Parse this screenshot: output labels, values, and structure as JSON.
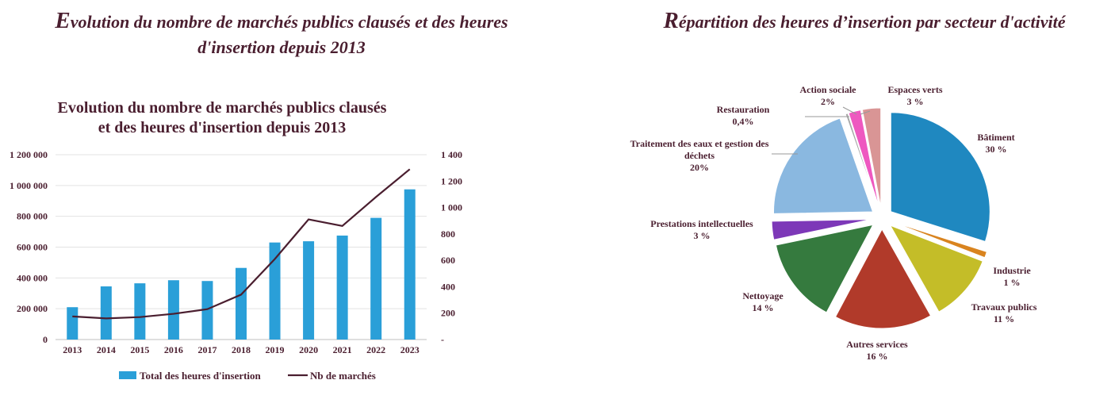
{
  "left_panel": {
    "title_first_letter": "E",
    "title_rest_line1": "volution du nombre de marchés publics clausés et des heures",
    "title_line2": "d'insertion depuis 2013"
  },
  "right_panel": {
    "title_first_letter": "R",
    "title_rest": "épartition des heures d’insertion par secteur d'activité"
  },
  "chart_data": [
    {
      "type": "bar",
      "title_lines": [
        "Evolution du nombre de marchés publics clausés",
        "et des heures d'insertion depuis 2013"
      ],
      "categories": [
        "2013",
        "2014",
        "2015",
        "2016",
        "2017",
        "2018",
        "2019",
        "2020",
        "2021",
        "2022",
        "2023"
      ],
      "series": [
        {
          "name": "Total des heures d'insertion",
          "type": "bar",
          "axis": "left",
          "color": "#2a9fd8",
          "values": [
            210000,
            345000,
            365000,
            385000,
            380000,
            465000,
            630000,
            638000,
            675000,
            790000,
            975000
          ]
        },
        {
          "name": "Nb de marchés",
          "type": "line",
          "axis": "right",
          "color": "#4a1e2f",
          "values": [
            175,
            160,
            170,
            195,
            230,
            340,
            610,
            910,
            860,
            1080,
            1290
          ]
        }
      ],
      "y_left": {
        "ylim": [
          0,
          1200000
        ],
        "ticks": [
          0,
          200000,
          400000,
          600000,
          800000,
          1000000,
          1200000
        ],
        "tick_labels": [
          "0",
          "200 000",
          "400 000",
          "600 000",
          "800 000",
          "1 000 000",
          "1 200 000"
        ]
      },
      "y_right": {
        "ylim": [
          0,
          1400
        ],
        "ticks": [
          0,
          200,
          400,
          600,
          800,
          1000,
          1200,
          1400
        ],
        "tick_labels": [
          "-",
          "200",
          "400",
          "600",
          "800",
          "1 000",
          "1 200",
          "1 400"
        ]
      },
      "grid": true,
      "legend_position": "bottom"
    },
    {
      "type": "pie",
      "slices": [
        {
          "name": "Bâtiment",
          "value": 30,
          "label": "30 %",
          "color": "#1f88c0"
        },
        {
          "name": "Industrie",
          "value": 1,
          "label": "1 %",
          "color": "#d9841f"
        },
        {
          "name": "Travaux publics",
          "value": 11,
          "label": "11 %",
          "color": "#c4bd28"
        },
        {
          "name": "Autres services",
          "value": 16,
          "label": "16 %",
          "color": "#b13a2a"
        },
        {
          "name": "Nettoyage",
          "value": 14,
          "label": "14 %",
          "color": "#357a3e"
        },
        {
          "name": "Prestations intellectuelles",
          "value": 3,
          "label": "3 %",
          "color": "#7d38b8"
        },
        {
          "name": "Traitement des eaux et gestion des déchets",
          "value": 20,
          "label": "20%",
          "color": "#8ab8e0"
        },
        {
          "name": "Restauration",
          "value": 0.4,
          "label": "0,4%",
          "color": "#a7a7a7"
        },
        {
          "name": "Action sociale",
          "value": 2,
          "label": "2%",
          "color": "#ee58c0"
        },
        {
          "name": "Espaces verts",
          "value": 3,
          "label": "3 %",
          "color": "#d99595"
        }
      ],
      "label_lines": [
        [
          "Bâtiment"
        ],
        [
          "Industrie"
        ],
        [
          "Travaux publics"
        ],
        [
          "Autres services"
        ],
        [
          "Nettoyage"
        ],
        [
          "Prestations intellectuelles"
        ],
        [
          "Traitement des eaux et gestion des",
          "déchets"
        ],
        [
          "Restauration"
        ],
        [
          "Action sociale"
        ],
        [
          "Espaces verts"
        ]
      ]
    }
  ]
}
